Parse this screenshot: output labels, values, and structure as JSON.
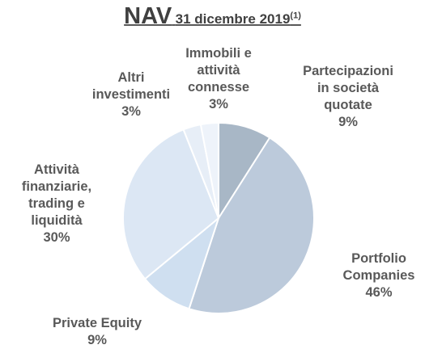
{
  "chart_data": {
    "type": "pie",
    "title": "NAV",
    "subtitle": "31 dicembre 2019",
    "title_note": "(1)",
    "categories": [
      "Partecipazioni in società quotate",
      "Portfolio Companies",
      "Private Equity",
      "Attività finanziarie, trading e liquidità",
      "Altri investimenti",
      "Immobili e attività connesse"
    ],
    "values": [
      9,
      46,
      9,
      30,
      3,
      3
    ],
    "value_labels": [
      "9%",
      "46%",
      "9%",
      "30%",
      "3%",
      "3%"
    ],
    "colors": [
      "#a8b7c6",
      "#bccadb",
      "#cfdff0",
      "#dce7f4",
      "#e7eef7",
      "#eef3fa"
    ]
  }
}
